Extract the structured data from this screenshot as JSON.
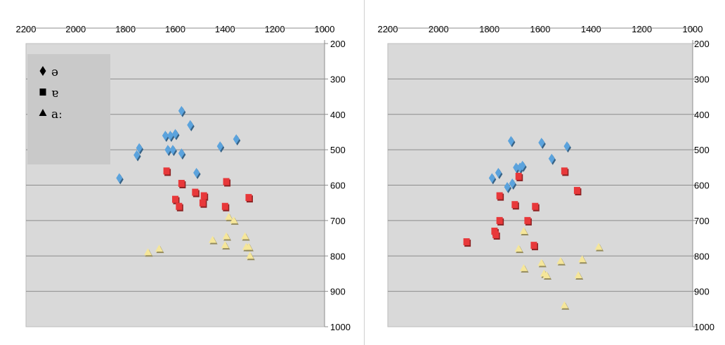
{
  "chart_data": [
    {
      "type": "scatter",
      "title": "",
      "xlabel": "",
      "ylabel": "",
      "x_reversed": true,
      "y_reversed": true,
      "xlim": [
        1000,
        2200
      ],
      "ylim": [
        200,
        1000
      ],
      "x_ticks": [
        "2200",
        "2000",
        "1800",
        "1600",
        "1400",
        "1200",
        "1000"
      ],
      "y_ticks": [
        "200",
        "300",
        "400",
        "500",
        "600",
        "700",
        "800",
        "900",
        "1000"
      ],
      "grid": "horizontal",
      "plot_background": "#d9d9d9",
      "legend": {
        "placement": "top-left",
        "entries": [
          {
            "symbol": "◆",
            "label": "ə"
          },
          {
            "symbol": "■",
            "label": "ɐ"
          },
          {
            "symbol": "▲",
            "label": "aː"
          }
        ]
      },
      "series": [
        {
          "name": "ə",
          "marker": "diamond",
          "color": "#5ba3dd",
          "points": [
            [
              1825,
              580
            ],
            [
              1755,
              515
            ],
            [
              1745,
              495
            ],
            [
              1640,
              460
            ],
            [
              1620,
              460
            ],
            [
              1600,
              455
            ],
            [
              1575,
              390
            ],
            [
              1540,
              430
            ],
            [
              1630,
              500
            ],
            [
              1610,
              500
            ],
            [
              1575,
              510
            ],
            [
              1515,
              565
            ],
            [
              1420,
              490
            ],
            [
              1355,
              470
            ]
          ]
        },
        {
          "name": "ɐ",
          "marker": "square",
          "color": "#e8383a",
          "points": [
            [
              1635,
              560
            ],
            [
              1575,
              595
            ],
            [
              1600,
              640
            ],
            [
              1585,
              660
            ],
            [
              1520,
              620
            ],
            [
              1485,
              630
            ],
            [
              1490,
              650
            ],
            [
              1395,
              590
            ],
            [
              1400,
              660
            ],
            [
              1305,
              635
            ]
          ]
        },
        {
          "name": "aː",
          "marker": "triangle",
          "color": "#f5e69a",
          "points": [
            [
              1710,
              790
            ],
            [
              1665,
              780
            ],
            [
              1450,
              755
            ],
            [
              1395,
              745
            ],
            [
              1400,
              770
            ],
            [
              1385,
              690
            ],
            [
              1365,
              700
            ],
            [
              1320,
              745
            ],
            [
              1315,
              775
            ],
            [
              1305,
              775
            ],
            [
              1300,
              800
            ]
          ]
        }
      ]
    },
    {
      "type": "scatter",
      "title": "",
      "xlabel": "",
      "ylabel": "",
      "x_reversed": true,
      "y_reversed": true,
      "xlim": [
        1000,
        2200
      ],
      "ylim": [
        200,
        1000
      ],
      "x_ticks": [
        "2200",
        "2000",
        "1800",
        "1600",
        "1400",
        "1200",
        "1000"
      ],
      "y_ticks": [
        "200",
        "300",
        "400",
        "500",
        "600",
        "700",
        "800",
        "900",
        "1000"
      ],
      "grid": "horizontal",
      "plot_background": "#d9d9d9",
      "legend": null,
      "series": [
        {
          "name": "ə",
          "marker": "diamond",
          "color": "#5ba3dd",
          "points": [
            [
              1790,
              580
            ],
            [
              1765,
              565
            ],
            [
              1730,
              605
            ],
            [
              1710,
              595
            ],
            [
              1695,
              550
            ],
            [
              1680,
              550
            ],
            [
              1670,
              545
            ],
            [
              1715,
              475
            ],
            [
              1595,
              480
            ],
            [
              1555,
              525
            ],
            [
              1495,
              490
            ]
          ]
        },
        {
          "name": "ɐ",
          "marker": "square",
          "color": "#e8383a",
          "points": [
            [
              1890,
              760
            ],
            [
              1780,
              730
            ],
            [
              1775,
              740
            ],
            [
              1760,
              700
            ],
            [
              1760,
              630
            ],
            [
              1700,
              655
            ],
            [
              1685,
              575
            ],
            [
              1650,
              700
            ],
            [
              1620,
              660
            ],
            [
              1625,
              770
            ],
            [
              1505,
              560
            ],
            [
              1455,
              615
            ]
          ]
        },
        {
          "name": "aː",
          "marker": "triangle",
          "color": "#f5e69a",
          "points": [
            [
              1685,
              780
            ],
            [
              1665,
              730
            ],
            [
              1665,
              835
            ],
            [
              1595,
              820
            ],
            [
              1585,
              850
            ],
            [
              1575,
              855
            ],
            [
              1520,
              815
            ],
            [
              1505,
              940
            ],
            [
              1450,
              855
            ],
            [
              1435,
              810
            ],
            [
              1370,
              775
            ]
          ]
        }
      ]
    }
  ]
}
